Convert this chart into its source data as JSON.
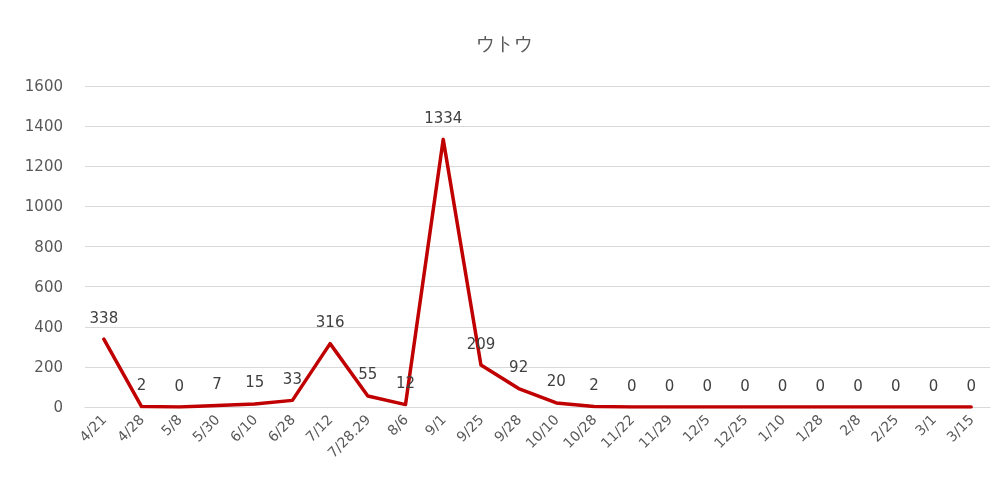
{
  "chart_data": {
    "type": "line",
    "title": "ウトウ",
    "categories": [
      "4/21",
      "4/28",
      "5/8",
      "5/30",
      "6/10",
      "6/28",
      "7/12",
      "7/28.29",
      "8/6",
      "9/1",
      "9/25",
      "9/28",
      "10/10",
      "10/28",
      "11/22",
      "11/29",
      "12/5",
      "12/25",
      "1/10",
      "1/28",
      "2/8",
      "2/25",
      "3/1",
      "3/15"
    ],
    "series": [
      {
        "color": "#c00000",
        "values": [
          338,
          2,
          0,
          7,
          15,
          33,
          316,
          55,
          12,
          1334,
          209,
          92,
          20,
          2,
          0,
          0,
          0,
          0,
          0,
          0,
          0,
          0,
          0,
          0
        ]
      }
    ],
    "ylim": [
      0,
      1600
    ],
    "yticks": [
      0,
      200,
      400,
      600,
      800,
      1000,
      1200,
      1400,
      1600
    ],
    "grid": "y",
    "data_labels": true,
    "line_style": "solid"
  }
}
